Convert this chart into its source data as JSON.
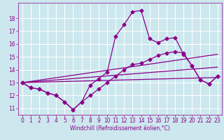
{
  "xlabel": "Windchill (Refroidissement éolien,°C)",
  "background_color": "#cce8ee",
  "grid_color": "#ffffff",
  "line_color": "#8b008b",
  "xlim": [
    -0.5,
    23.5
  ],
  "ylim": [
    10.5,
    19.2
  ],
  "xticks": [
    0,
    1,
    2,
    3,
    4,
    5,
    6,
    7,
    8,
    9,
    10,
    11,
    12,
    13,
    14,
    15,
    16,
    17,
    18,
    19,
    20,
    21,
    22,
    23
  ],
  "yticks": [
    11,
    12,
    13,
    14,
    15,
    16,
    17,
    18
  ],
  "tick_fontsize": 5.5,
  "xlabel_fontsize": 5.5,
  "series": [
    {
      "x": [
        0,
        1,
        2,
        3,
        4,
        5,
        6,
        7,
        8,
        9,
        10,
        11,
        12,
        13,
        14,
        15,
        16,
        17,
        18,
        19,
        20,
        21,
        22,
        23
      ],
      "y": [
        13.0,
        12.6,
        12.5,
        12.2,
        12.0,
        11.5,
        10.9,
        11.5,
        12.8,
        13.3,
        13.8,
        16.6,
        17.5,
        18.5,
        18.6,
        16.4,
        16.1,
        16.4,
        16.5,
        15.2,
        14.3,
        13.2,
        12.9,
        13.5
      ],
      "marker": true,
      "markersize": 2.5,
      "linewidth": 0.9
    },
    {
      "x": [
        0,
        1,
        2,
        3,
        4,
        5,
        6,
        7,
        8,
        9,
        10,
        11,
        12,
        13,
        14,
        15,
        16,
        17,
        18,
        19,
        20,
        21,
        22,
        23
      ],
      "y": [
        13.0,
        12.6,
        12.5,
        12.2,
        12.0,
        11.5,
        10.9,
        11.5,
        12.0,
        12.5,
        13.0,
        13.5,
        14.0,
        14.4,
        14.5,
        14.8,
        15.1,
        15.3,
        15.4,
        15.3,
        14.3,
        13.2,
        12.9,
        13.5
      ],
      "marker": true,
      "markersize": 2.5,
      "linewidth": 0.9
    },
    {
      "x": [
        0,
        23
      ],
      "y": [
        13.0,
        15.2
      ],
      "marker": false,
      "markersize": 0,
      "linewidth": 0.9
    },
    {
      "x": [
        0,
        23
      ],
      "y": [
        13.0,
        14.2
      ],
      "marker": false,
      "markersize": 0,
      "linewidth": 0.9
    },
    {
      "x": [
        0,
        23
      ],
      "y": [
        13.0,
        13.4
      ],
      "marker": false,
      "markersize": 0,
      "linewidth": 0.9
    }
  ]
}
